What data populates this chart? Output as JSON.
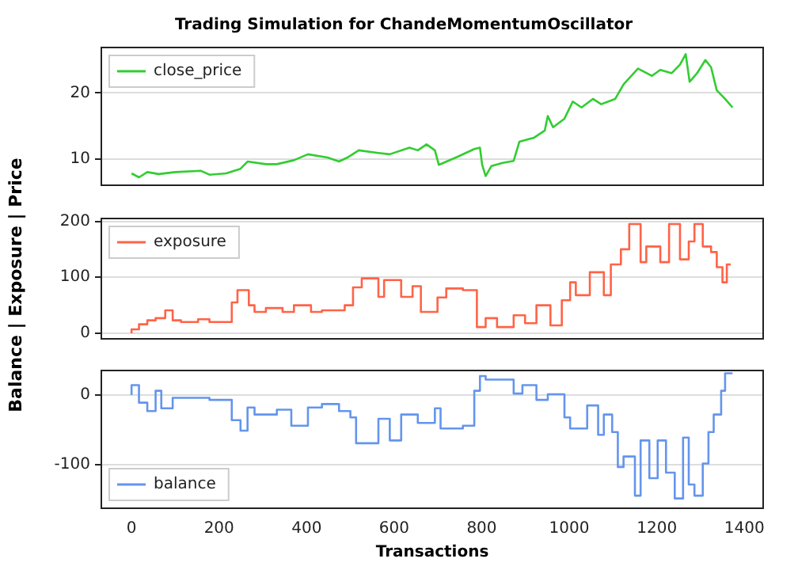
{
  "chart_data": [
    {
      "type": "line",
      "title": "Trading Simulation for ChandeMomentumOscillator",
      "xlim": [
        -69,
        1443
      ],
      "ylim": [
        6,
        26.9
      ],
      "yticks": [
        10,
        20
      ],
      "grid": "y",
      "legend": "top left",
      "tick_labels": "y",
      "series": [
        {
          "name": "close_price",
          "color": "#32cd32",
          "x": [
            0,
            17,
            36,
            62,
            100,
            158,
            178,
            216,
            249,
            265,
            307,
            332,
            371,
            403,
            448,
            474,
            493,
            519,
            564,
            590,
            635,
            654,
            674,
            693,
            702,
            744,
            783,
            796,
            801,
            809,
            822,
            848,
            873,
            886,
            919,
            944,
            951,
            963,
            989,
            1008,
            1028,
            1054,
            1073,
            1105,
            1124,
            1157,
            1189,
            1208,
            1234,
            1253,
            1266,
            1275,
            1292,
            1311,
            1324,
            1337,
            1356,
            1373
          ],
          "values": [
            7.8,
            7.2,
            8.0,
            7.7,
            8.0,
            8.2,
            7.6,
            7.8,
            8.5,
            9.6,
            9.2,
            9.2,
            9.8,
            10.7,
            10.2,
            9.6,
            10.2,
            11.3,
            10.9,
            10.7,
            11.7,
            11.3,
            12.2,
            11.3,
            9.1,
            10.3,
            11.5,
            11.7,
            9.1,
            7.4,
            8.9,
            9.4,
            9.7,
            12.6,
            13.2,
            14.3,
            16.5,
            14.8,
            16.1,
            18.7,
            17.8,
            19.1,
            18.3,
            19.1,
            21.3,
            23.7,
            22.6,
            23.5,
            23.0,
            24.3,
            25.9,
            21.7,
            23.0,
            25.0,
            23.9,
            20.4,
            19.1,
            17.8
          ]
        }
      ]
    },
    {
      "type": "step",
      "ylabel": "Balance | Exposure | Price",
      "xlim": [
        -69,
        1443
      ],
      "ylim": [
        -10,
        205
      ],
      "yticks": [
        0,
        100,
        200
      ],
      "grid": "y",
      "legend": "top left",
      "tick_labels": "y",
      "series": [
        {
          "name": "exposure",
          "color": "#ff6347",
          "x": [
            0,
            17,
            36,
            55,
            77,
            94,
            113,
            152,
            178,
            229,
            242,
            268,
            281,
            307,
            345,
            371,
            410,
            435,
            487,
            506,
            526,
            564,
            577,
            616,
            642,
            661,
            699,
            719,
            757,
            789,
            809,
            835,
            873,
            899,
            925,
            957,
            983,
            1002,
            1015,
            1047,
            1079,
            1095,
            1118,
            1137,
            1163,
            1176,
            1208,
            1228,
            1253,
            1273,
            1286,
            1305,
            1324,
            1337,
            1350,
            1360,
            1369
          ],
          "values": [
            0,
            7,
            16,
            23,
            27,
            41,
            23,
            20,
            25,
            20,
            55,
            77,
            50,
            38,
            45,
            38,
            50,
            38,
            41,
            50,
            82,
            98,
            65,
            95,
            65,
            84,
            38,
            64,
            80,
            77,
            11,
            27,
            11,
            32,
            18,
            50,
            14,
            59,
            91,
            68,
            109,
            68,
            123,
            150,
            195,
            127,
            155,
            127,
            195,
            132,
            164,
            195,
            155,
            145,
            118,
            91,
            123
          ]
        }
      ]
    },
    {
      "type": "step",
      "xlabel": "Transactions",
      "xlim": [
        -69,
        1443
      ],
      "xticks": [
        0,
        200,
        400,
        600,
        800,
        1000,
        1200,
        1400
      ],
      "ylim": [
        -162,
        35
      ],
      "yticks": [
        -100,
        0
      ],
      "grid": "y",
      "legend": "bottom left",
      "series": [
        {
          "name": "balance",
          "color": "#6495ed",
          "x": [
            0,
            17,
            36,
            55,
            68,
            94,
            126,
            178,
            229,
            249,
            265,
            281,
            332,
            365,
            403,
            435,
            474,
            500,
            513,
            564,
            590,
            616,
            654,
            693,
            706,
            757,
            783,
            796,
            809,
            873,
            893,
            925,
            951,
            989,
            1002,
            1041,
            1066,
            1079,
            1098,
            1111,
            1124,
            1150,
            1163,
            1183,
            1202,
            1221,
            1241,
            1260,
            1273,
            1286,
            1305,
            1318,
            1330,
            1347,
            1356,
            1373
          ],
          "values": [
            0,
            14,
            -11,
            -23,
            6,
            -19,
            -4,
            -4,
            -7,
            -36,
            -51,
            -18,
            -28,
            -21,
            -44,
            -18,
            -13,
            -23,
            -32,
            -69,
            -34,
            -65,
            -28,
            -40,
            -19,
            -48,
            -44,
            6,
            27,
            22,
            2,
            14,
            -7,
            1,
            -32,
            -48,
            -15,
            -57,
            -28,
            -53,
            -103,
            -88,
            -144,
            -65,
            -119,
            -65,
            -111,
            -148,
            -61,
            -128,
            -144,
            -98,
            -53,
            -28,
            6,
            31
          ]
        }
      ]
    }
  ]
}
